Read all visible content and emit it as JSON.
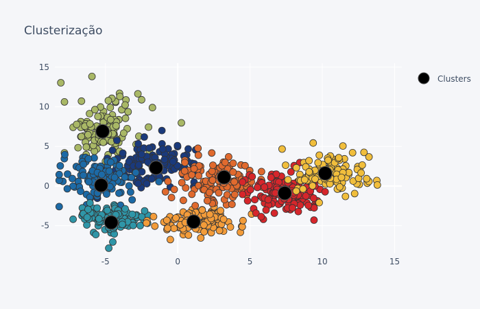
{
  "chart_data": {
    "type": "scatter",
    "title": "Clusterização",
    "xlabel": "",
    "ylabel": "",
    "xlim": [
      -8.5,
      15.5
    ],
    "ylim": [
      -8.5,
      15.5
    ],
    "x_ticks": [
      -5,
      0,
      5,
      10,
      15
    ],
    "y_ticks": [
      -5,
      0,
      5,
      10,
      15
    ],
    "grid": true,
    "legend": "top-right",
    "legend_entries": [
      "Clusters"
    ],
    "background": "#f5f6f9",
    "groups": [
      {
        "color": "#a9b866",
        "center": [
          -5.2,
          7.2
        ],
        "spread": [
          1.4,
          2.0
        ],
        "count": 120
      },
      {
        "color": "#1a3a7c",
        "center": [
          -1.5,
          3.0
        ],
        "spread": [
          1.5,
          1.3
        ],
        "count": 130
      },
      {
        "color": "#1c6aa6",
        "center": [
          -5.4,
          0.8
        ],
        "spread": [
          1.3,
          1.4
        ],
        "count": 110
      },
      {
        "color": "#2f96a8",
        "center": [
          -4.5,
          -4.2
        ],
        "spread": [
          1.2,
          0.9
        ],
        "count": 120
      },
      {
        "color": "#f39c3a",
        "center": [
          1.3,
          -4.4
        ],
        "spread": [
          1.4,
          0.9
        ],
        "count": 120
      },
      {
        "color": "#e06a2e",
        "center": [
          2.8,
          0.8
        ],
        "spread": [
          1.5,
          1.4
        ],
        "count": 130
      },
      {
        "color": "#d6262b",
        "center": [
          7.4,
          -0.8
        ],
        "spread": [
          1.3,
          1.3
        ],
        "count": 150
      },
      {
        "color": "#f1be3c",
        "center": [
          10.4,
          1.5
        ],
        "spread": [
          1.6,
          1.3
        ],
        "count": 110
      }
    ],
    "centroids": {
      "name": "Clusters",
      "color": "#000000",
      "points": [
        {
          "x": -5.2,
          "y": 6.9
        },
        {
          "x": -1.5,
          "y": 2.3
        },
        {
          "x": -5.3,
          "y": 0.1
        },
        {
          "x": -4.6,
          "y": -4.6
        },
        {
          "x": 1.1,
          "y": -4.5
        },
        {
          "x": 3.2,
          "y": 1.1
        },
        {
          "x": 7.4,
          "y": -0.9
        },
        {
          "x": 10.2,
          "y": 1.6
        }
      ]
    }
  }
}
